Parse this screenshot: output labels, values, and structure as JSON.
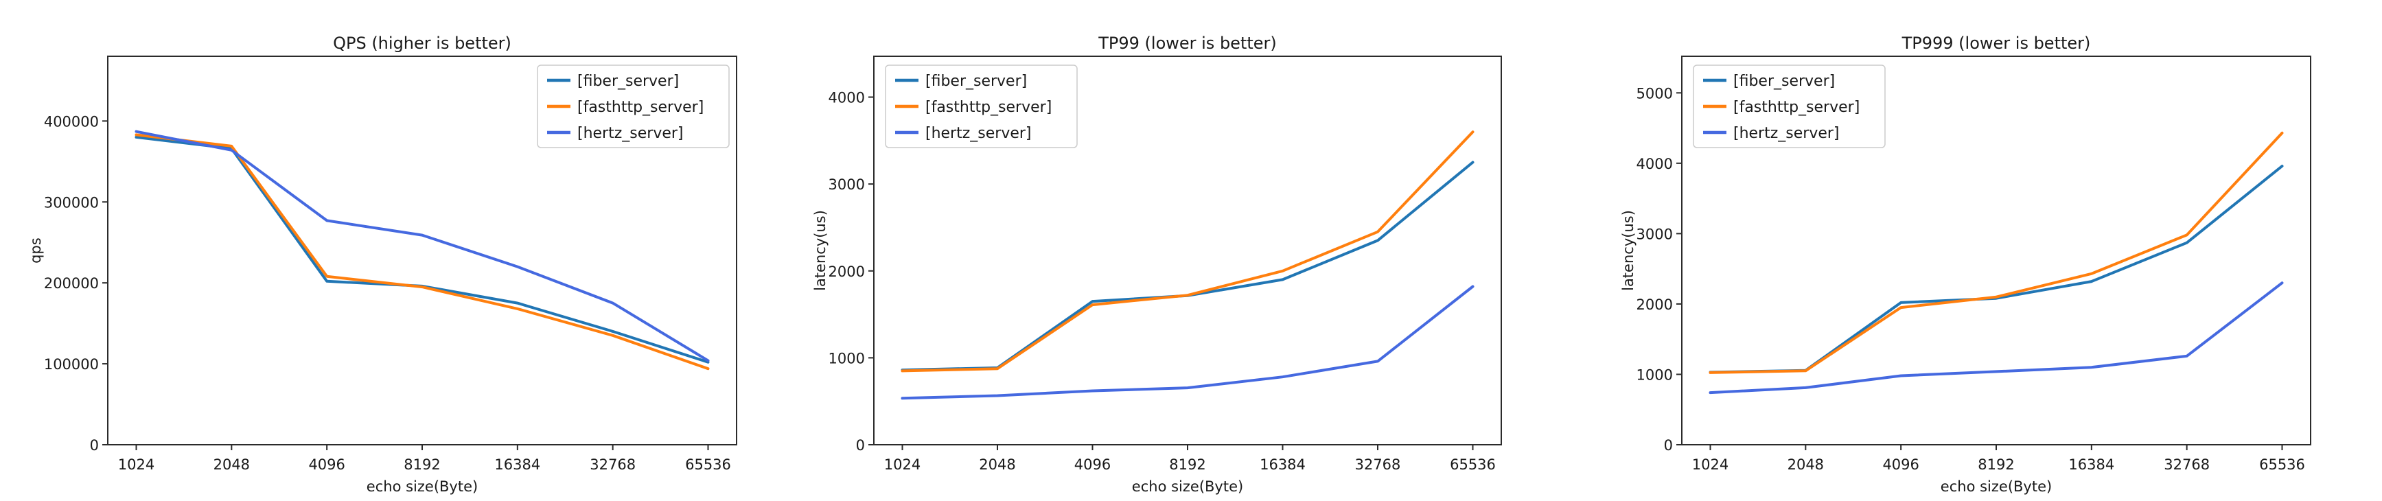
{
  "chart_data": [
    {
      "type": "line",
      "title": "QPS (higher is better)",
      "xlabel": "echo size(Byte)",
      "ylabel": "qps",
      "categories": [
        "1024",
        "2048",
        "4096",
        "8192",
        "16384",
        "32768",
        "65536"
      ],
      "yticks": [
        0,
        100000,
        200000,
        300000,
        400000
      ],
      "ylim": [
        0,
        480000
      ],
      "grid": false,
      "legend_position": "top-right",
      "series": [
        {
          "name": "[fiber_server]",
          "color": "#2176b4",
          "values": [
            380000,
            366000,
            202000,
            196000,
            175000,
            140000,
            102000
          ]
        },
        {
          "name": "[fasthttp_server]",
          "color": "#ff7f0e",
          "values": [
            383000,
            369000,
            208000,
            195000,
            168000,
            135000,
            94000
          ]
        },
        {
          "name": "[hertz_server]",
          "color": "#4569e0",
          "values": [
            387000,
            364000,
            277000,
            259000,
            220000,
            175000,
            104000
          ]
        }
      ]
    },
    {
      "type": "line",
      "title": "TP99 (lower is better)",
      "xlabel": "echo size(Byte)",
      "ylabel": "latency(us)",
      "categories": [
        "1024",
        "2048",
        "4096",
        "8192",
        "16384",
        "32768",
        "65536"
      ],
      "yticks": [
        0,
        1000,
        2000,
        3000,
        4000
      ],
      "ylim": [
        0,
        4470
      ],
      "grid": false,
      "legend_position": "top-left",
      "series": [
        {
          "name": "[fiber_server]",
          "color": "#2176b4",
          "values": [
            860,
            885,
            1650,
            1715,
            1900,
            2350,
            3250
          ]
        },
        {
          "name": "[fasthttp_server]",
          "color": "#ff7f0e",
          "values": [
            850,
            875,
            1610,
            1720,
            2000,
            2450,
            3600
          ]
        },
        {
          "name": "[hertz_server]",
          "color": "#4569e0",
          "values": [
            535,
            565,
            620,
            655,
            780,
            960,
            1820
          ]
        }
      ]
    },
    {
      "type": "line",
      "title": "TP999 (lower is better)",
      "xlabel": "echo size(Byte)",
      "ylabel": "latency(us)",
      "categories": [
        "1024",
        "2048",
        "4096",
        "8192",
        "16384",
        "32768",
        "65536"
      ],
      "yticks": [
        0,
        1000,
        2000,
        3000,
        4000,
        5000
      ],
      "ylim": [
        0,
        5520
      ],
      "grid": false,
      "legend_position": "top-left",
      "series": [
        {
          "name": "[fiber_server]",
          "color": "#2176b4",
          "values": [
            1030,
            1055,
            2020,
            2080,
            2320,
            2870,
            3960
          ]
        },
        {
          "name": "[fasthttp_server]",
          "color": "#ff7f0e",
          "values": [
            1025,
            1050,
            1950,
            2100,
            2430,
            2980,
            4430
          ]
        },
        {
          "name": "[hertz_server]",
          "color": "#4569e0",
          "values": [
            740,
            810,
            980,
            1040,
            1100,
            1260,
            2300
          ]
        }
      ]
    }
  ]
}
